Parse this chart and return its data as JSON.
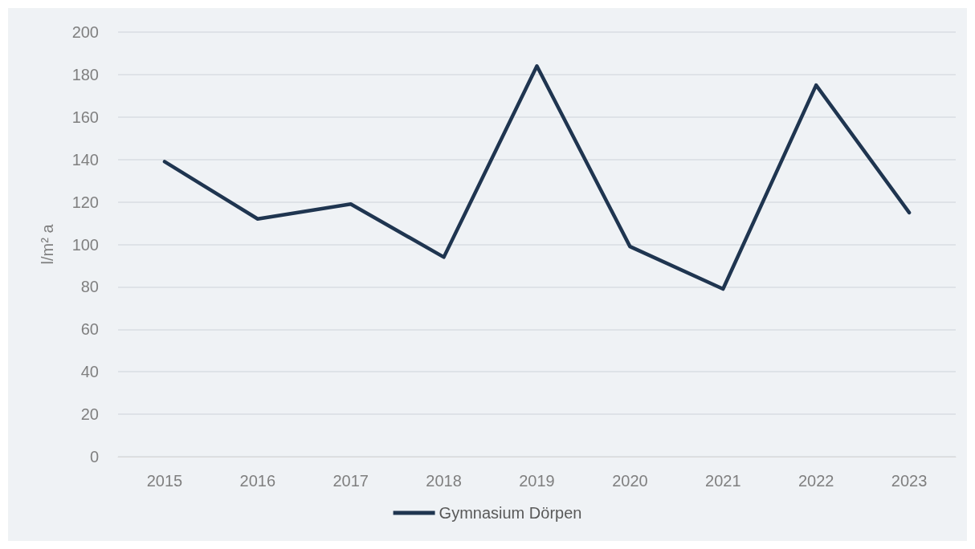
{
  "chart_data": {
    "type": "line",
    "ylabel": "l/m² a",
    "categories": [
      "2015",
      "2016",
      "2017",
      "2018",
      "2019",
      "2020",
      "2021",
      "2022",
      "2023"
    ],
    "series": [
      {
        "name": "Gymnasium Dörpen",
        "color": "#1f3550",
        "values": [
          139,
          112,
          119,
          94,
          184,
          99,
          79,
          175,
          115
        ]
      }
    ],
    "ylim": [
      0,
      200
    ],
    "yticks": [
      0,
      20,
      40,
      60,
      80,
      100,
      120,
      140,
      160,
      180,
      200
    ],
    "grid": "y",
    "legend": "bottom",
    "marker": "none",
    "line_style": "solid"
  }
}
